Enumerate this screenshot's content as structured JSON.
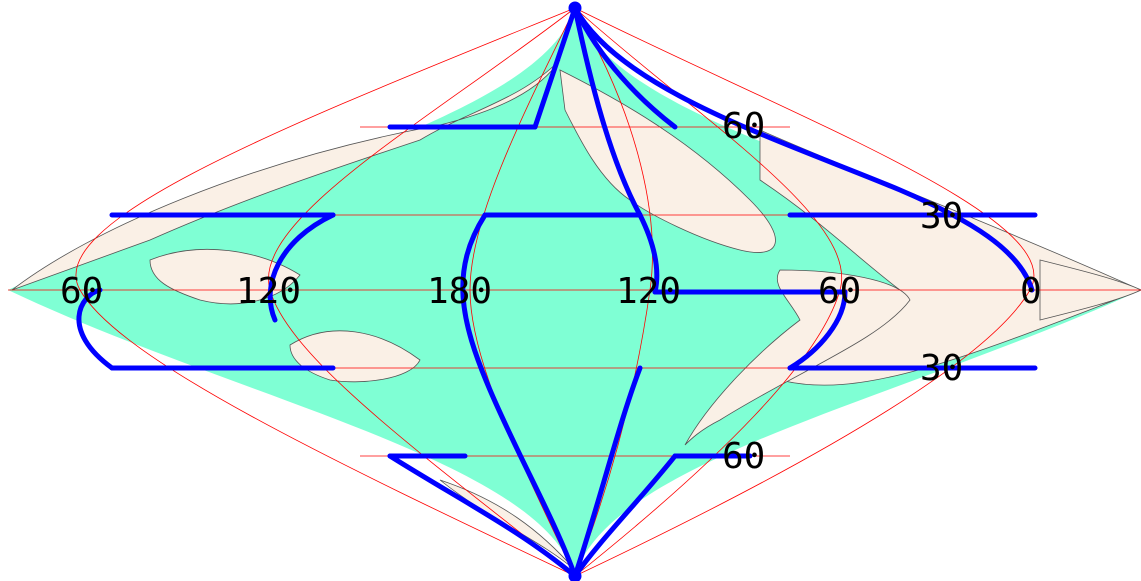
{
  "colors": {
    "ocean": "#7fffd4",
    "land": "#faf0e6",
    "graticule": "#ff0000",
    "coast": "#555555",
    "overlay": "#0000ff"
  },
  "labels": {
    "lon_60_west": "60",
    "lon_120_west": "120",
    "lon_180": "180",
    "lon_120_east": "120",
    "lon_60_east": "60",
    "lon_0": "0",
    "lat_60_north": "60",
    "lat_30_north": "30",
    "lat_30_south": "30",
    "lat_60_south": "60"
  }
}
